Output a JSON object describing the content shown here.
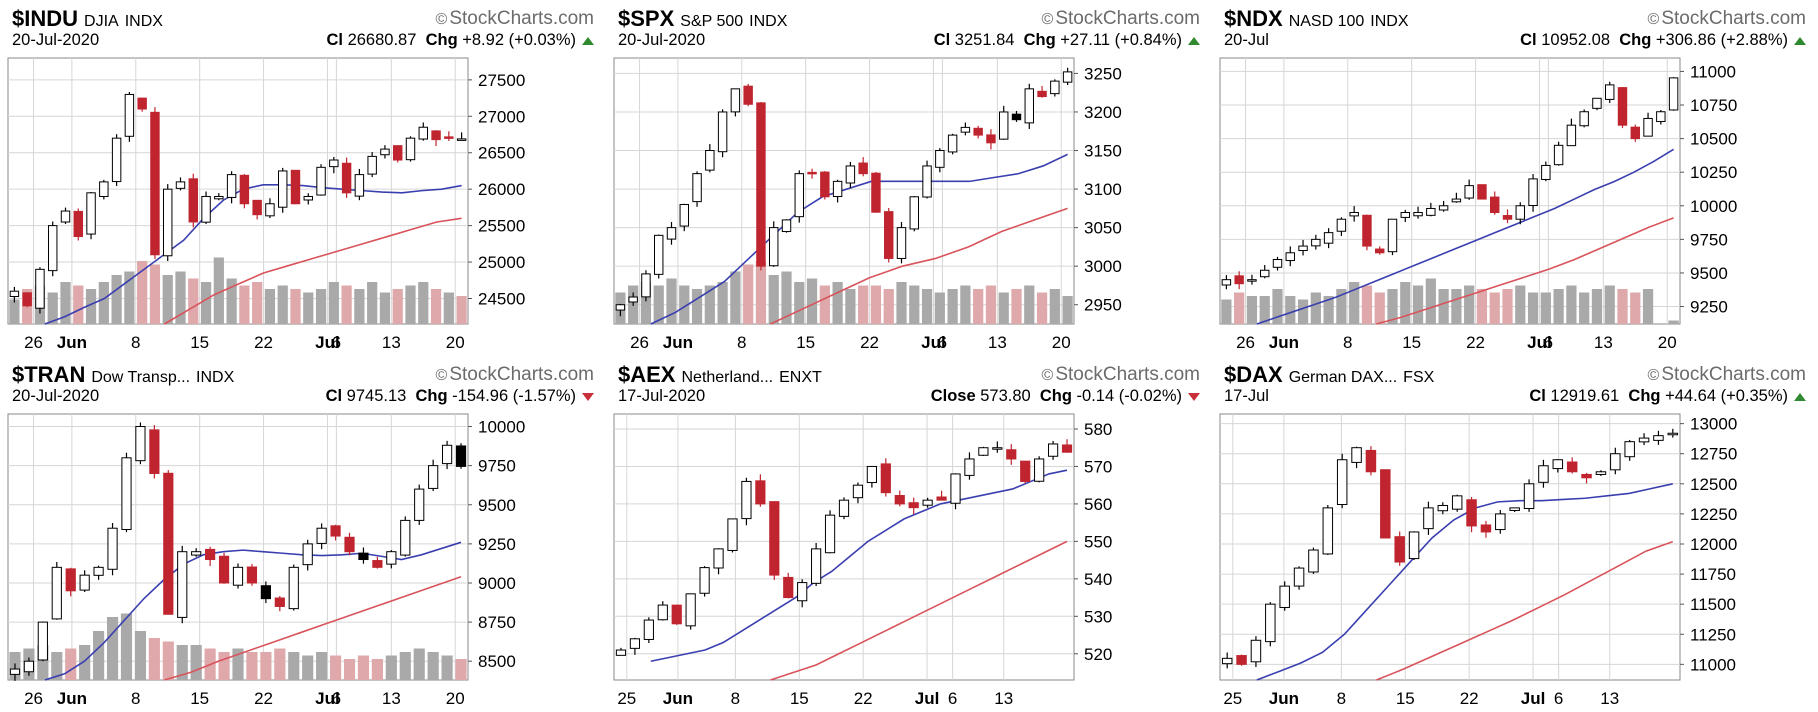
{
  "colors": {
    "up_candle": "#ffffff",
    "down_candle": "#c0252f",
    "black_candle": "#000000",
    "ma20": "#3a3fb0",
    "ma50": "#d9535b",
    "volume_up": "#a9a9a9",
    "volume_down": "#dfa8ab",
    "grid": "#d6d6d6",
    "watermark": "#6b6b6b",
    "chg_up": "#2f8a2f",
    "chg_down": "#c8313a"
  },
  "watermark": "StockCharts.com",
  "chart_data": [
    {
      "type": "candlestick",
      "symbol": "$INDU",
      "name": "DJIA",
      "exchange": "INDX",
      "date": "20-Jul-2020",
      "close_label": "Cl",
      "close": "26680.87",
      "chg_label": "Chg",
      "chg": "+8.92 (+0.03%)",
      "direction": "up",
      "y_ticks": [
        "27500",
        "27000",
        "26500",
        "26000",
        "25500",
        "25000",
        "24500"
      ],
      "y_tick_values": [
        27500,
        27000,
        26500,
        26000,
        25500,
        25000,
        24500
      ],
      "ylim": [
        24150,
        27800
      ],
      "x_ticks": [
        "26",
        "Jun",
        "8",
        "15",
        "22",
        "Jul",
        "6",
        "13",
        "20"
      ],
      "x_tick_days": [
        2,
        5,
        10,
        15,
        20,
        25,
        25.7,
        30,
        35
      ],
      "seed": 11,
      "ohlc_path": [
        24600,
        24400,
        24900,
        25500,
        25700,
        25350,
        25950,
        26100,
        26700,
        27300,
        27100,
        25100,
        26000,
        26100,
        25550,
        25900,
        25900,
        26200,
        25800,
        25650,
        25800,
        26250,
        25800,
        25900,
        26300,
        26400,
        25950,
        26200,
        26450,
        26550,
        26400,
        26700,
        26850,
        26680,
        26700,
        26690
      ],
      "ma20": [
        24150,
        24250,
        24380,
        24500,
        24700,
        24900,
        25100,
        25300,
        25600,
        25850,
        26000,
        26060,
        26060,
        26050,
        26020,
        26000,
        25980,
        25960,
        25950,
        25980,
        26000,
        26050
      ],
      "ma50": [
        24150,
        24350,
        24550,
        24700,
        24850,
        24950,
        25050,
        25150,
        25250,
        25350,
        25450,
        25550,
        25600
      ],
      "volume": [
        0.35,
        0.5,
        0.55,
        0.45,
        0.6,
        0.55,
        0.5,
        0.6,
        0.7,
        0.75,
        0.9,
        0.85,
        0.7,
        0.75,
        0.65,
        0.6,
        0.95,
        0.65,
        0.55,
        0.6,
        0.5,
        0.55,
        0.5,
        0.45,
        0.5,
        0.6,
        0.55,
        0.5,
        0.6,
        0.45,
        0.5,
        0.55,
        0.6,
        0.5,
        0.45,
        0.4
      ]
    },
    {
      "type": "candlestick",
      "symbol": "$SPX",
      "name": "S&P 500",
      "exchange": "INDX",
      "date": "20-Jul-2020",
      "close_label": "Cl",
      "close": "3251.84",
      "chg_label": "Chg",
      "chg": "+27.11 (+0.84%)",
      "direction": "up",
      "y_ticks": [
        "3250",
        "3200",
        "3150",
        "3100",
        "3050",
        "3000",
        "2950"
      ],
      "y_tick_values": [
        3250,
        3200,
        3150,
        3100,
        3050,
        3000,
        2950
      ],
      "ylim": [
        2925,
        3270
      ],
      "x_ticks": [
        "26",
        "Jun",
        "8",
        "15",
        "22",
        "Jul",
        "6",
        "13",
        "20"
      ],
      "x_tick_days": [
        2,
        5,
        10,
        15,
        20,
        25,
        25.7,
        30,
        35
      ],
      "seed": 23,
      "ohlc_path": [
        2950,
        2960,
        2990,
        3040,
        3050,
        3080,
        3120,
        3150,
        3200,
        3230,
        3210,
        3000,
        3050,
        3060,
        3120,
        3120,
        3090,
        3110,
        3130,
        3120,
        3070,
        3010,
        3050,
        3090,
        3130,
        3150,
        3170,
        3180,
        3170,
        3160,
        3200,
        3190,
        3230,
        3220,
        3240,
        3252
      ],
      "ma20": [
        2925,
        2940,
        2960,
        2980,
        3010,
        3040,
        3070,
        3090,
        3100,
        3110,
        3110,
        3110,
        3110,
        3110,
        3115,
        3120,
        3130,
        3145
      ],
      "ma50": [
        2925,
        2945,
        2965,
        2985,
        3000,
        3010,
        3025,
        3045,
        3060,
        3075
      ],
      "volume": [
        0.45,
        0.55,
        0.6,
        0.55,
        0.65,
        0.55,
        0.5,
        0.55,
        0.6,
        0.75,
        0.85,
        0.9,
        0.7,
        0.75,
        0.6,
        0.65,
        0.55,
        0.6,
        0.5,
        0.55,
        0.55,
        0.5,
        0.6,
        0.55,
        0.5,
        0.45,
        0.5,
        0.55,
        0.5,
        0.55,
        0.45,
        0.5,
        0.55,
        0.45,
        0.5,
        0.4
      ]
    },
    {
      "type": "candlestick",
      "symbol": "$NDX",
      "name": "NASD 100",
      "exchange": "INDX",
      "date": "20-Jul",
      "close_label": "Cl",
      "close": "10952.08",
      "chg_label": "Chg",
      "chg": "+306.86 (+2.88%)",
      "direction": "up",
      "y_ticks": [
        "11000",
        "10750",
        "10500",
        "10250",
        "10000",
        "9750",
        "9500",
        "9250"
      ],
      "y_tick_values": [
        11000,
        10750,
        10500,
        10250,
        10000,
        9750,
        9500,
        9250
      ],
      "ylim": [
        9120,
        11100
      ],
      "x_ticks": [
        "26",
        "Jun",
        "8",
        "15",
        "22",
        "Jul",
        "6",
        "13",
        "20"
      ],
      "x_tick_days": [
        2,
        5,
        10,
        15,
        20,
        25,
        25.7,
        30,
        35
      ],
      "seed": 37,
      "ohlc_path": [
        9450,
        9420,
        9450,
        9520,
        9600,
        9650,
        9700,
        9750,
        9800,
        9900,
        9950,
        9700,
        9650,
        9900,
        9950,
        9950,
        9980,
        10000,
        10050,
        10150,
        10050,
        9950,
        9900,
        10000,
        10200,
        10300,
        10450,
        10600,
        10700,
        10800,
        10900,
        10600,
        10500,
        10650,
        10700,
        10952
      ],
      "ma20": [
        9120,
        9170,
        9220,
        9270,
        9320,
        9380,
        9440,
        9500,
        9560,
        9620,
        9680,
        9740,
        9800,
        9860,
        9920,
        9980,
        10050,
        10120,
        10180,
        10250,
        10330,
        10420
      ],
      "ma50": [
        9120,
        9170,
        9230,
        9290,
        9350,
        9410,
        9470,
        9530,
        9600,
        9680,
        9760,
        9840,
        9910
      ],
      "volume": [
        0.35,
        0.45,
        0.4,
        0.4,
        0.5,
        0.4,
        0.35,
        0.45,
        0.4,
        0.5,
        0.6,
        0.55,
        0.45,
        0.5,
        0.6,
        0.55,
        0.65,
        0.5,
        0.5,
        0.55,
        0.5,
        0.45,
        0.5,
        0.55,
        0.45,
        0.45,
        0.5,
        0.55,
        0.45,
        0.5,
        0.55,
        0.5,
        0.45,
        0.5,
        0.0,
        0.05
      ]
    },
    {
      "type": "candlestick",
      "symbol": "$TRAN",
      "name": "Dow Transp...",
      "exchange": "INDX",
      "date": "20-Jul-2020",
      "close_label": "Cl",
      "close": "9745.13",
      "chg_label": "Chg",
      "chg": "-154.96 (-1.57%)",
      "direction": "down",
      "y_ticks": [
        "10000",
        "9750",
        "9500",
        "9250",
        "9000",
        "8750",
        "8500"
      ],
      "y_tick_values": [
        10000,
        9750,
        9500,
        9250,
        9000,
        8750,
        8500
      ],
      "ylim": [
        8380,
        10080
      ],
      "x_ticks": [
        "26",
        "Jun",
        "8",
        "15",
        "22",
        "Jul",
        "6",
        "13",
        "20"
      ],
      "x_tick_days": [
        2,
        5,
        10,
        15,
        20,
        25,
        25.7,
        30,
        35
      ],
      "seed": 41,
      "ohlc_path": [
        8450,
        8500,
        8750,
        9100,
        8950,
        9050,
        9100,
        9350,
        9800,
        10000,
        9700,
        8800,
        9200,
        9200,
        9150,
        9000,
        9100,
        9000,
        8900,
        8850,
        9100,
        9250,
        9350,
        9300,
        9200,
        9150,
        9100,
        9200,
        9400,
        9600,
        9750,
        9880,
        9745
      ],
      "ma20": [
        8380,
        8420,
        8500,
        8620,
        8760,
        8900,
        9020,
        9120,
        9180,
        9200,
        9210,
        9200,
        9190,
        9180,
        9175,
        9180,
        9190,
        9170,
        9150,
        9180,
        9220,
        9260
      ],
      "ma50": [
        8380,
        8430,
        8500,
        8560,
        8620,
        8680,
        8740,
        8800,
        8860,
        8920,
        8980,
        9040
      ],
      "volume": [
        0.4,
        0.45,
        0.5,
        0.4,
        0.45,
        0.5,
        0.7,
        0.9,
        0.95,
        0.7,
        0.6,
        0.55,
        0.5,
        0.5,
        0.45,
        0.4,
        0.45,
        0.4,
        0.4,
        0.45,
        0.4,
        0.35,
        0.4,
        0.35,
        0.3,
        0.35,
        0.3,
        0.35,
        0.4,
        0.45,
        0.4,
        0.35,
        0.3
      ]
    },
    {
      "type": "candlestick",
      "symbol": "$AEX",
      "name": "Netherland...",
      "exchange": "ENXT",
      "date": "17-Jul-2020",
      "close_label": "Close",
      "close": "573.80",
      "chg_label": "Chg",
      "chg": "-0.14 (-0.02%)",
      "direction": "down",
      "y_ticks": [
        "580",
        "570",
        "560",
        "550",
        "540",
        "530",
        "520"
      ],
      "y_tick_values": [
        580,
        570,
        560,
        550,
        540,
        530,
        520
      ],
      "ylim": [
        513,
        584
      ],
      "x_ticks": [
        "25",
        "Jun",
        "8",
        "15",
        "22",
        "Jul",
        "6",
        "13"
      ],
      "x_tick_days": [
        1,
        5,
        9.5,
        14.5,
        19.5,
        24.5,
        26.5,
        30.5
      ],
      "seed": 53,
      "ohlc_path": [
        521,
        524,
        529,
        533,
        528,
        536,
        543,
        548,
        556,
        566,
        560,
        541,
        535,
        539,
        548,
        557,
        561,
        565,
        570,
        563,
        560,
        559,
        561,
        561,
        568,
        572,
        575,
        575,
        572,
        566,
        572,
        576,
        573.8
      ],
      "ma20": [
        518,
        519,
        520,
        521,
        523,
        526,
        529,
        532,
        535,
        539,
        542,
        546,
        550,
        553,
        556,
        558,
        560,
        561,
        562,
        563,
        564,
        566,
        568,
        569
      ],
      "ma50": [
        513,
        515,
        517,
        520,
        523,
        526,
        529,
        532,
        535,
        538,
        541,
        544,
        547,
        550
      ],
      "volume": []
    },
    {
      "type": "candlestick",
      "symbol": "$DAX",
      "name": "German DAX...",
      "exchange": "FSX",
      "date": "17-Jul",
      "close_label": "Cl",
      "close": "12919.61",
      "chg_label": "Chg",
      "chg": "+44.64 (+0.35%)",
      "direction": "up",
      "y_ticks": [
        "13000",
        "12750",
        "12500",
        "12250",
        "12000",
        "11750",
        "11500",
        "11250",
        "11000"
      ],
      "y_tick_values": [
        13000,
        12750,
        12500,
        12250,
        12000,
        11750,
        11500,
        11250,
        11000
      ],
      "ylim": [
        10870,
        13080
      ],
      "x_ticks": [
        "25",
        "Jun",
        "8",
        "15",
        "22",
        "Jul",
        "6",
        "13"
      ],
      "x_tick_days": [
        1,
        5,
        9.5,
        14.5,
        19.5,
        24.5,
        26.5,
        30.5
      ],
      "seed": 67,
      "ohlc_path": [
        11050,
        11000,
        11200,
        11500,
        11650,
        11800,
        11950,
        12300,
        12700,
        12800,
        12600,
        12050,
        11850,
        12100,
        12300,
        12320,
        12400,
        12150,
        12100,
        12250,
        12300,
        12500,
        12650,
        12700,
        12600,
        12550,
        12600,
        12750,
        12850,
        12880,
        12900,
        12920
      ],
      "ma20": [
        10870,
        10940,
        11010,
        11100,
        11250,
        11450,
        11650,
        11850,
        12050,
        12200,
        12300,
        12350,
        12360,
        12360,
        12370,
        12380,
        12400,
        12420,
        12460,
        12500
      ],
      "ma50": [
        10870,
        10960,
        11060,
        11160,
        11260,
        11360,
        11470,
        11580,
        11700,
        11820,
        11940,
        12020
      ],
      "volume": []
    }
  ]
}
